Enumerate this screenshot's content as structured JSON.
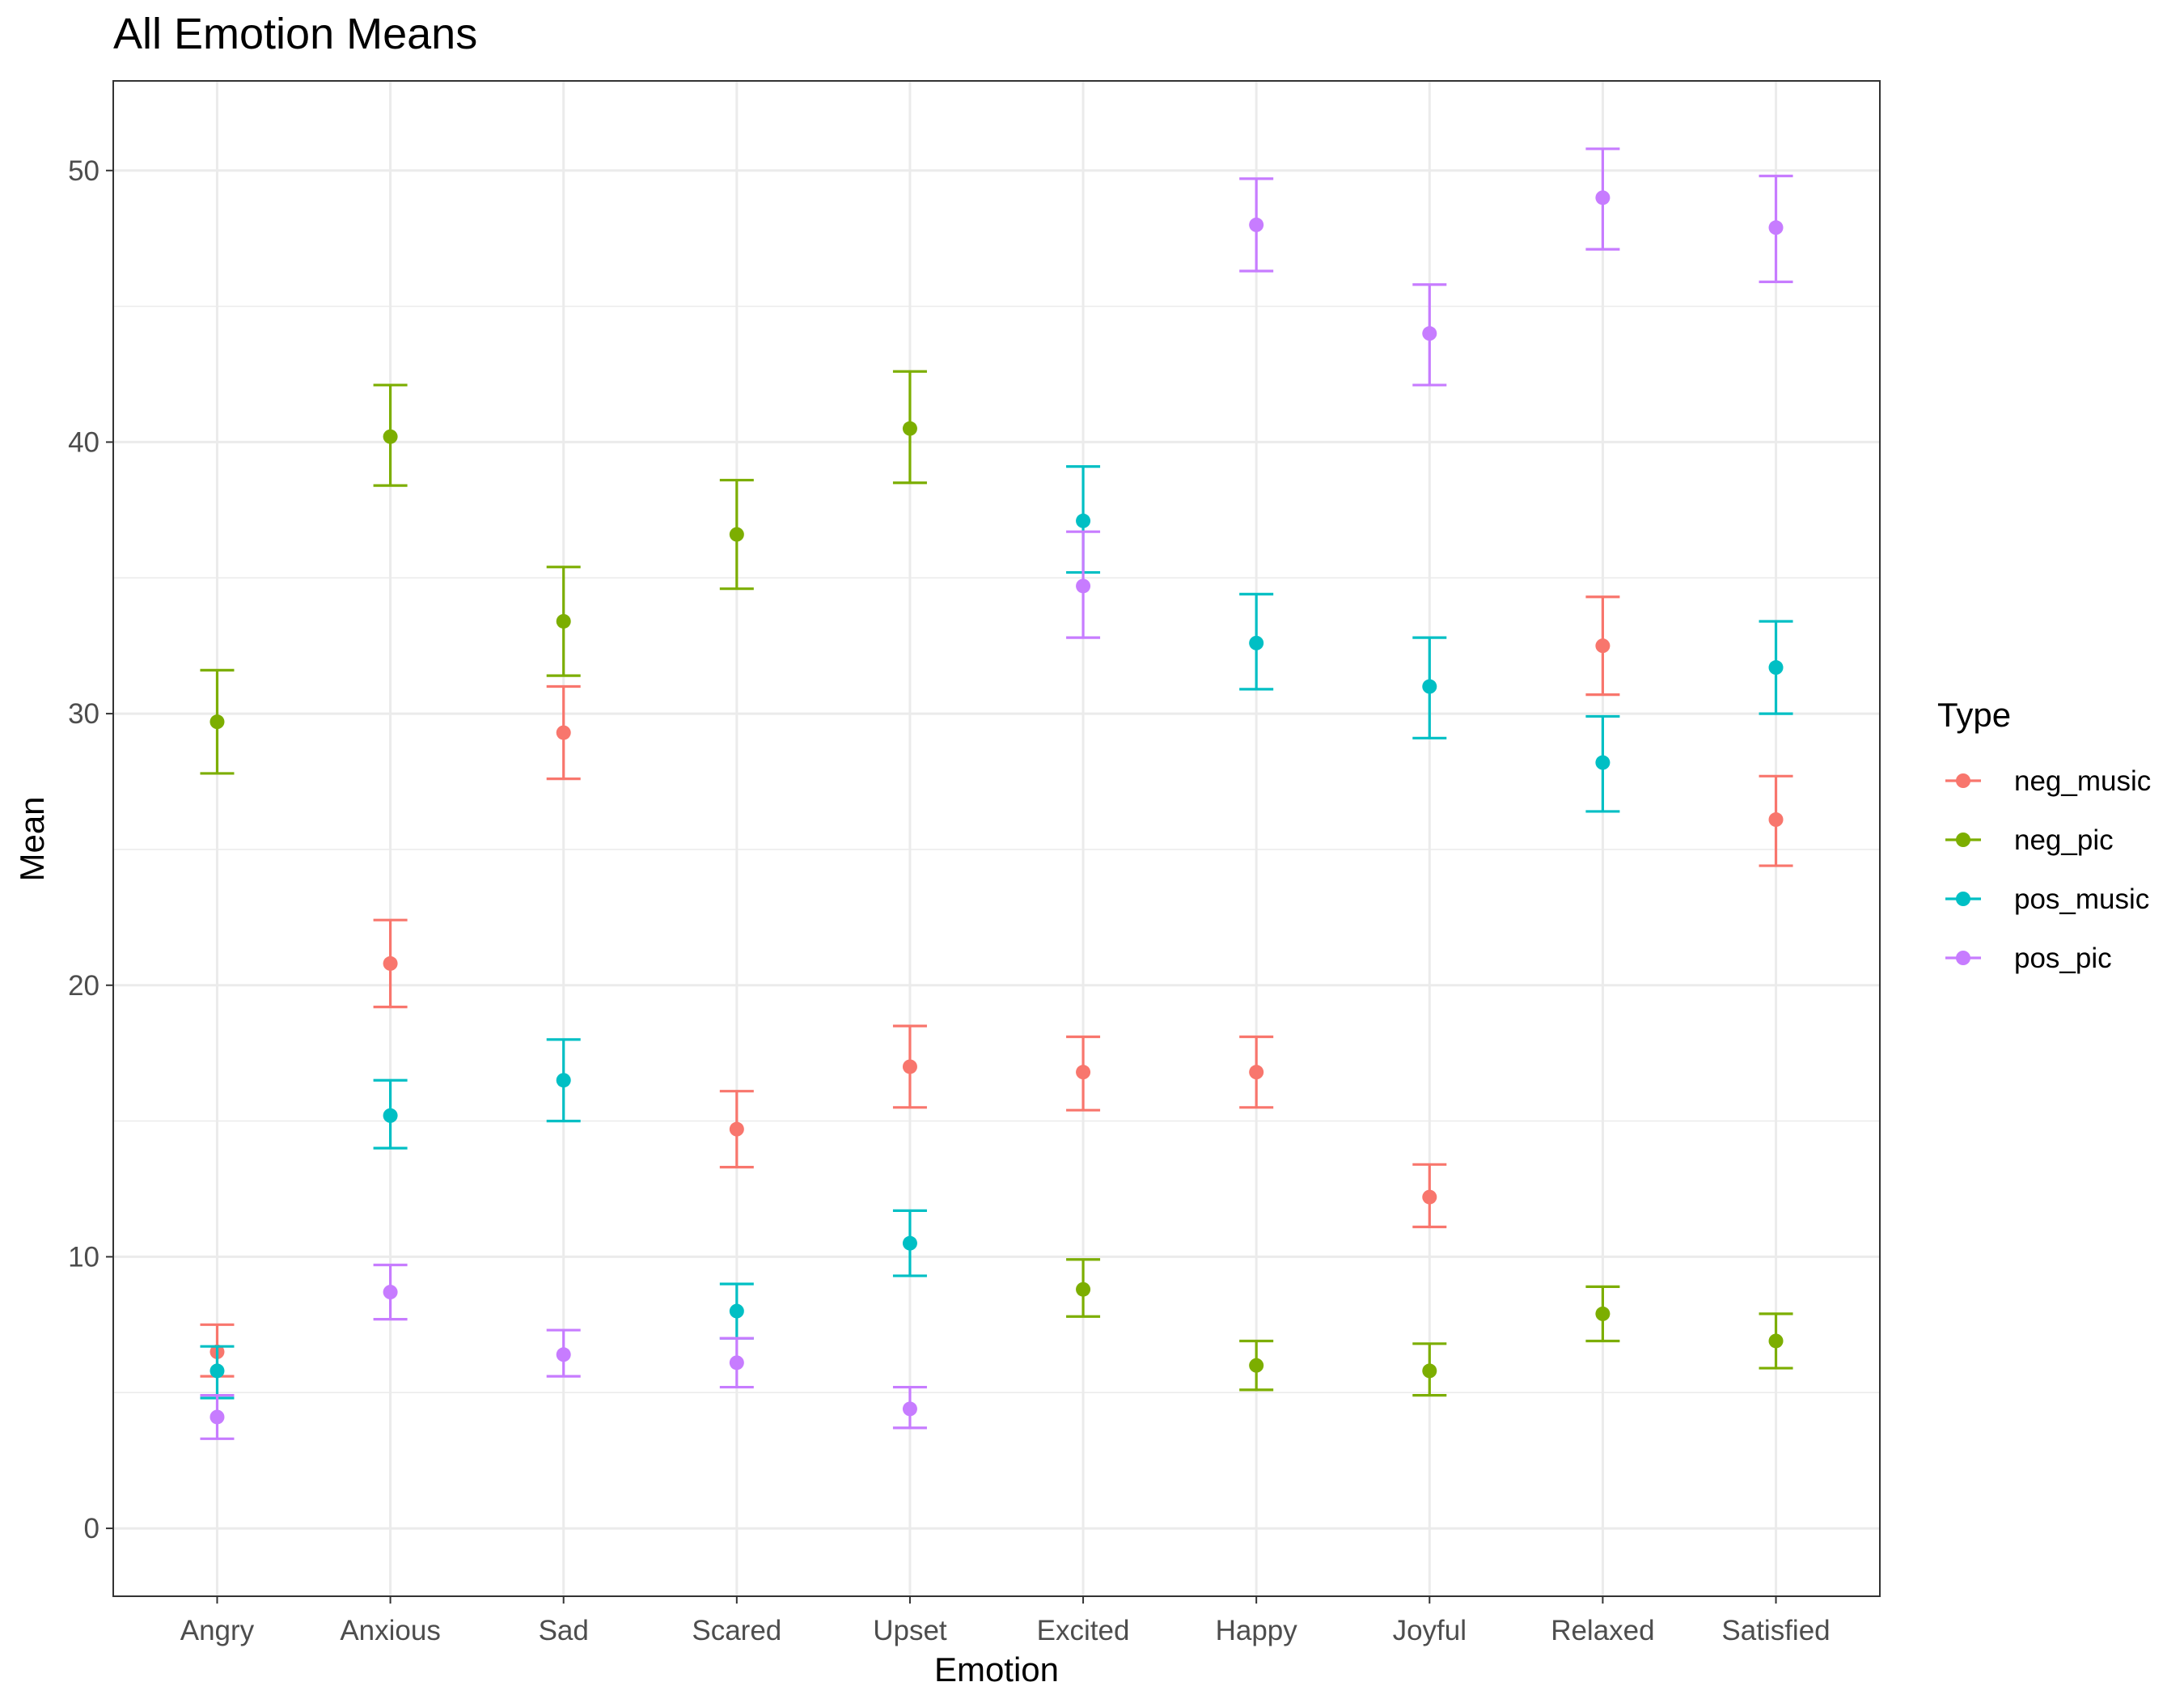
{
  "chart_data": {
    "type": "scatter",
    "title": "All Emotion Means",
    "xlabel": "Emotion",
    "ylabel": "Mean",
    "categories": [
      "Angry",
      "Anxious",
      "Sad",
      "Scared",
      "Upset",
      "Excited",
      "Happy",
      "Joyful",
      "Relaxed",
      "Satisfied"
    ],
    "ylim": [
      -2.5,
      53.3
    ],
    "yticks": [
      0,
      10,
      20,
      30,
      40,
      50
    ],
    "grid": true,
    "error_bars": true,
    "legend": {
      "title": "Type",
      "position": "right"
    },
    "series": [
      {
        "name": "neg_music",
        "color": "#F8766D",
        "values": [
          6.5,
          20.8,
          29.3,
          14.7,
          17.0,
          16.8,
          16.8,
          12.2,
          32.5,
          26.1
        ],
        "lower": [
          5.6,
          19.2,
          27.6,
          13.3,
          15.5,
          15.4,
          15.5,
          11.1,
          30.7,
          24.4
        ],
        "upper": [
          7.5,
          22.4,
          31.0,
          16.1,
          18.5,
          18.1,
          18.1,
          13.4,
          34.3,
          27.7
        ]
      },
      {
        "name": "neg_pic",
        "color": "#7CAE00",
        "values": [
          29.7,
          40.2,
          33.4,
          36.6,
          40.5,
          8.8,
          6.0,
          5.8,
          7.9,
          6.9
        ],
        "lower": [
          27.8,
          38.4,
          31.4,
          34.6,
          38.5,
          7.8,
          5.1,
          4.9,
          6.9,
          5.9
        ],
        "upper": [
          31.6,
          42.1,
          35.4,
          38.6,
          42.6,
          9.9,
          6.9,
          6.8,
          8.9,
          7.9
        ]
      },
      {
        "name": "pos_music",
        "color": "#00BFC4",
        "values": [
          5.8,
          15.2,
          16.5,
          8.0,
          10.5,
          37.1,
          32.6,
          31.0,
          28.2,
          31.7
        ],
        "lower": [
          4.8,
          14.0,
          15.0,
          7.0,
          9.3,
          35.2,
          30.9,
          29.1,
          26.4,
          30.0
        ],
        "upper": [
          6.7,
          16.5,
          18.0,
          9.0,
          11.7,
          39.1,
          34.4,
          32.8,
          29.9,
          33.4
        ]
      },
      {
        "name": "pos_pic",
        "color": "#C77CFF",
        "values": [
          4.1,
          8.7,
          6.4,
          6.1,
          4.4,
          34.7,
          48.0,
          44.0,
          49.0,
          47.9
        ],
        "lower": [
          3.3,
          7.7,
          5.6,
          5.2,
          3.7,
          32.8,
          46.3,
          42.1,
          47.1,
          45.9
        ],
        "upper": [
          4.9,
          9.7,
          7.3,
          7.0,
          5.2,
          36.7,
          49.7,
          45.8,
          50.8,
          49.8
        ]
      }
    ]
  }
}
